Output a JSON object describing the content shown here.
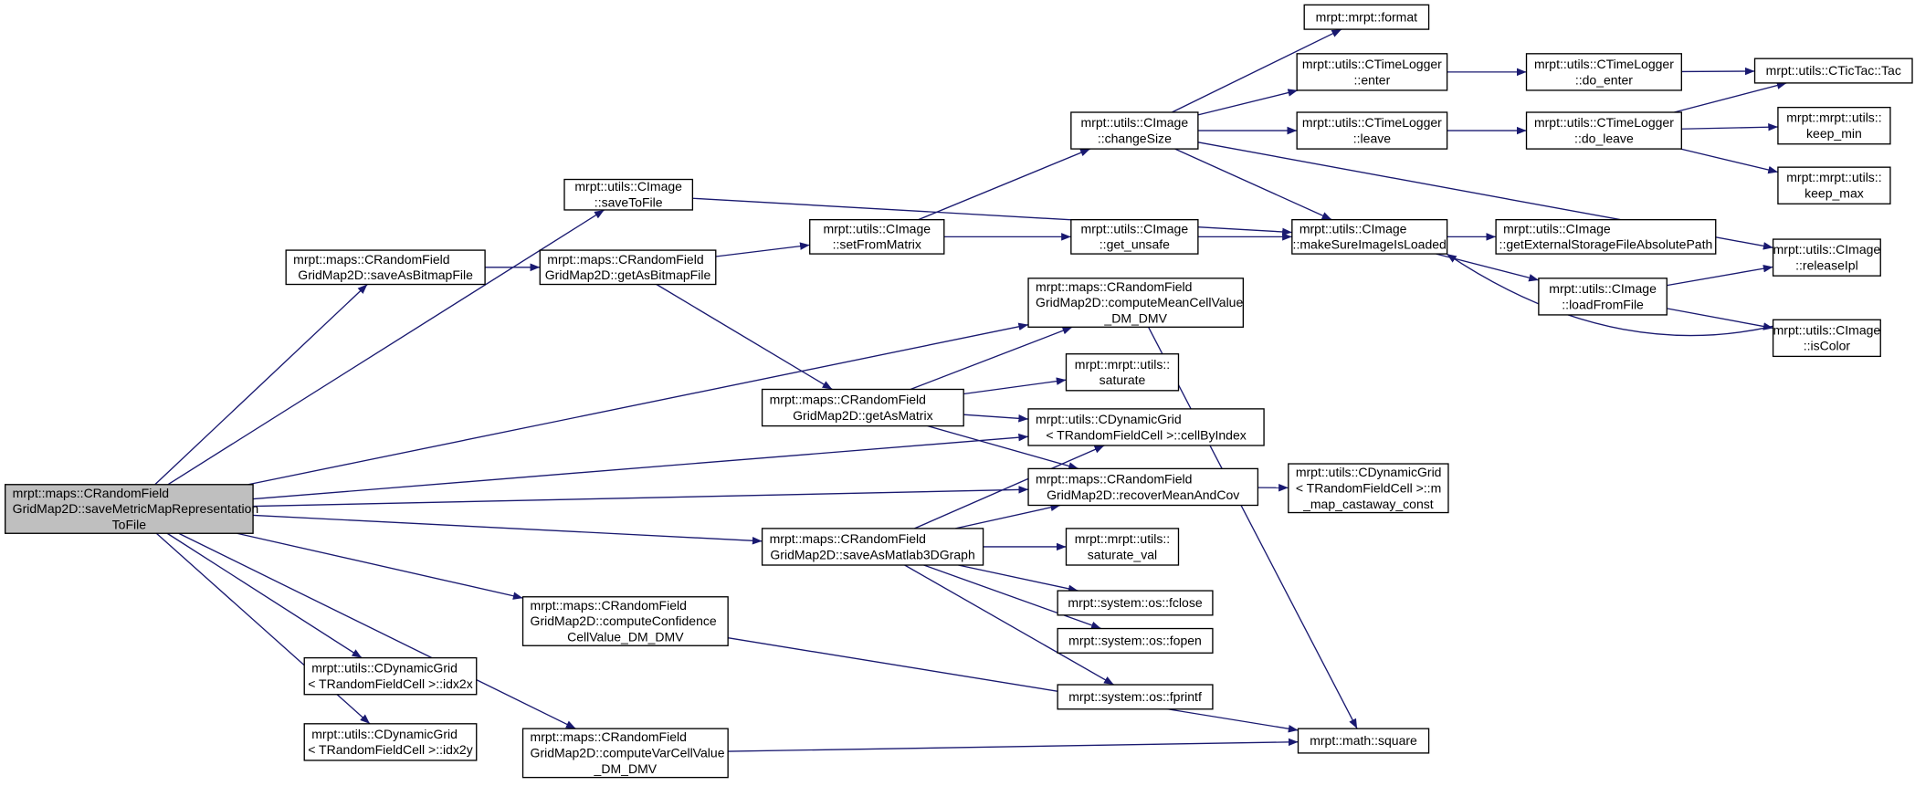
{
  "diagram": {
    "type": "call-graph",
    "colors": {
      "edge": "#191970",
      "root_fill": "#bfbfbf",
      "node_fill": "#ffffff",
      "node_border": "#000000"
    },
    "nodes": [
      {
        "id": "main",
        "lines": [
          "mrpt::maps::CRandomField",
          "GridMap2D::saveMetricMapRepresentation",
          "ToFile"
        ],
        "root": true
      },
      {
        "id": "saveToFile",
        "lines": [
          "mrpt::utils::CImage",
          "::saveToFile"
        ]
      },
      {
        "id": "saveAsBitmapFile",
        "lines": [
          "mrpt::maps::CRandomField",
          "GridMap2D::saveAsBitmapFile"
        ]
      },
      {
        "id": "getAsBitmapFile",
        "lines": [
          "mrpt::maps::CRandomField",
          "GridMap2D::getAsBitmapFile"
        ]
      },
      {
        "id": "setFromMatrix",
        "lines": [
          "mrpt::utils::CImage",
          "::setFromMatrix"
        ]
      },
      {
        "id": "changeSize",
        "lines": [
          "mrpt::utils::CImage",
          "::changeSize"
        ]
      },
      {
        "id": "format",
        "lines": [
          "mrpt::mrpt::format"
        ]
      },
      {
        "id": "enter",
        "lines": [
          "mrpt::utils::CTimeLogger",
          "::enter"
        ]
      },
      {
        "id": "leave",
        "lines": [
          "mrpt::utils::CTimeLogger",
          "::leave"
        ]
      },
      {
        "id": "do_enter",
        "lines": [
          "mrpt::utils::CTimeLogger",
          "::do_enter"
        ]
      },
      {
        "id": "do_leave",
        "lines": [
          "mrpt::utils::CTimeLogger",
          "::do_leave"
        ]
      },
      {
        "id": "tac",
        "lines": [
          "mrpt::utils::CTicTac::Tac"
        ]
      },
      {
        "id": "keep_min",
        "lines": [
          "mrpt::mrpt::utils::",
          "keep_min"
        ]
      },
      {
        "id": "keep_max",
        "lines": [
          "mrpt::mrpt::utils::",
          "keep_max"
        ]
      },
      {
        "id": "get_unsafe",
        "lines": [
          "mrpt::utils::CImage",
          "::get_unsafe"
        ]
      },
      {
        "id": "makeSure",
        "lines": [
          "mrpt::utils::CImage",
          "::makeSureImageIsLoaded"
        ]
      },
      {
        "id": "getExternal",
        "lines": [
          "mrpt::utils::CImage",
          "::getExternalStorageFileAbsolutePath"
        ]
      },
      {
        "id": "releaseIpl",
        "lines": [
          "mrpt::utils::CImage",
          "::releaseIpl"
        ]
      },
      {
        "id": "loadFromFile",
        "lines": [
          "mrpt::utils::CImage",
          "::loadFromFile"
        ]
      },
      {
        "id": "isColor",
        "lines": [
          "mrpt::utils::CImage",
          "::isColor"
        ]
      },
      {
        "id": "computeMean",
        "lines": [
          "mrpt::maps::CRandomField",
          "GridMap2D::computeMeanCellValue",
          "_DM_DMV"
        ]
      },
      {
        "id": "getAsMatrix",
        "lines": [
          "mrpt::maps::CRandomField",
          "GridMap2D::getAsMatrix"
        ]
      },
      {
        "id": "saturate",
        "lines": [
          "mrpt::mrpt::utils::",
          "saturate"
        ]
      },
      {
        "id": "cellByIndex",
        "lines": [
          "mrpt::utils::CDynamicGrid",
          "< TRandomFieldCell >::cellByIndex"
        ]
      },
      {
        "id": "recover",
        "lines": [
          "mrpt::maps::CRandomField",
          "GridMap2D::recoverMeanAndCov"
        ]
      },
      {
        "id": "castaway",
        "lines": [
          "mrpt::utils::CDynamicGrid",
          "< TRandomFieldCell >::m",
          "_map_castaway_const"
        ]
      },
      {
        "id": "matlab",
        "lines": [
          "mrpt::maps::CRandomField",
          "GridMap2D::saveAsMatlab3DGraph"
        ]
      },
      {
        "id": "saturate_val",
        "lines": [
          "mrpt::mrpt::utils::",
          "saturate_val"
        ]
      },
      {
        "id": "fclose",
        "lines": [
          "mrpt::system::os::fclose"
        ]
      },
      {
        "id": "fopen",
        "lines": [
          "mrpt::system::os::fopen"
        ]
      },
      {
        "id": "fprintf",
        "lines": [
          "mrpt::system::os::fprintf"
        ]
      },
      {
        "id": "confidence",
        "lines": [
          "mrpt::maps::CRandomField",
          "GridMap2D::computeConfidence",
          "CellValue_DM_DMV"
        ]
      },
      {
        "id": "idx2x",
        "lines": [
          "mrpt::utils::CDynamicGrid",
          "< TRandomFieldCell >::idx2x"
        ]
      },
      {
        "id": "idx2y",
        "lines": [
          "mrpt::utils::CDynamicGrid",
          "< TRandomFieldCell >::idx2y"
        ]
      },
      {
        "id": "var",
        "lines": [
          "mrpt::maps::CRandomField",
          "GridMap2D::computeVarCellValue",
          "_DM_DMV"
        ]
      },
      {
        "id": "square",
        "lines": [
          "mrpt::math::square"
        ]
      }
    ],
    "edges": [
      [
        "main",
        "saveToFile"
      ],
      [
        "main",
        "saveAsBitmapFile"
      ],
      [
        "main",
        "computeMean"
      ],
      [
        "main",
        "cellByIndex"
      ],
      [
        "main",
        "recover"
      ],
      [
        "main",
        "matlab"
      ],
      [
        "main",
        "confidence"
      ],
      [
        "main",
        "idx2x"
      ],
      [
        "main",
        "idx2y"
      ],
      [
        "main",
        "var"
      ],
      [
        "saveToFile",
        "makeSure"
      ],
      [
        "saveAsBitmapFile",
        "getAsBitmapFile"
      ],
      [
        "getAsBitmapFile",
        "setFromMatrix"
      ],
      [
        "getAsBitmapFile",
        "getAsMatrix"
      ],
      [
        "setFromMatrix",
        "changeSize"
      ],
      [
        "setFromMatrix",
        "get_unsafe"
      ],
      [
        "changeSize",
        "format"
      ],
      [
        "changeSize",
        "enter"
      ],
      [
        "changeSize",
        "leave"
      ],
      [
        "changeSize",
        "makeSure"
      ],
      [
        "changeSize",
        "releaseIpl"
      ],
      [
        "enter",
        "do_enter"
      ],
      [
        "leave",
        "do_leave"
      ],
      [
        "do_enter",
        "tac"
      ],
      [
        "do_leave",
        "tac"
      ],
      [
        "do_leave",
        "keep_min"
      ],
      [
        "do_leave",
        "keep_max"
      ],
      [
        "get_unsafe",
        "makeSure"
      ],
      [
        "makeSure",
        "getExternal"
      ],
      [
        "makeSure",
        "loadFromFile"
      ],
      [
        "loadFromFile",
        "releaseIpl"
      ],
      [
        "loadFromFile",
        "isColor"
      ],
      [
        "isColor",
        "makeSure"
      ],
      [
        "computeMean",
        "square"
      ],
      [
        "getAsMatrix",
        "computeMean"
      ],
      [
        "getAsMatrix",
        "saturate"
      ],
      [
        "getAsMatrix",
        "cellByIndex"
      ],
      [
        "getAsMatrix",
        "recover"
      ],
      [
        "recover",
        "castaway"
      ],
      [
        "matlab",
        "cellByIndex"
      ],
      [
        "matlab",
        "recover"
      ],
      [
        "matlab",
        "saturate_val"
      ],
      [
        "matlab",
        "fclose"
      ],
      [
        "matlab",
        "fopen"
      ],
      [
        "matlab",
        "fprintf"
      ],
      [
        "confidence",
        "square"
      ],
      [
        "var",
        "square"
      ]
    ]
  }
}
